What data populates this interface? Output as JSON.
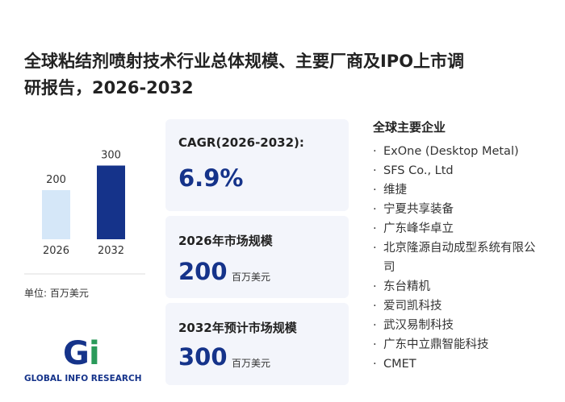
{
  "title_lines": [
    "全球粘结剂喷射技术行业总体规模、主要厂商及IPO上市调",
    "研报告，2026-2032"
  ],
  "chart_data": {
    "type": "bar",
    "categories": [
      "2026",
      "2032"
    ],
    "values": [
      200,
      300
    ],
    "colors": [
      "#d5e7f8",
      "#15338a"
    ],
    "unit": "单位: 百万美元"
  },
  "cards": [
    {
      "label": "CAGR(2026-2032):",
      "value": "6.9%"
    },
    {
      "label": "2026年市场规模",
      "value": 200,
      "unit": "百万美元"
    },
    {
      "label": "2032年预计市场规模",
      "value": 300,
      "unit": "百万美元"
    }
  ],
  "companies": {
    "title": "全球主要企业",
    "items": [
      "ExOne (Desktop Metal)",
      "SFS Co., Ltd",
      "维捷",
      "宁夏共享装备",
      "广东峰华卓立",
      "北京隆源自动成型系统有限公司",
      "东台精机",
      "爱司凯科技",
      "武汉易制科技",
      "广东中立鼎智能科技",
      "CMET"
    ]
  },
  "logo": "GLOBAL INFO RESEARCH"
}
